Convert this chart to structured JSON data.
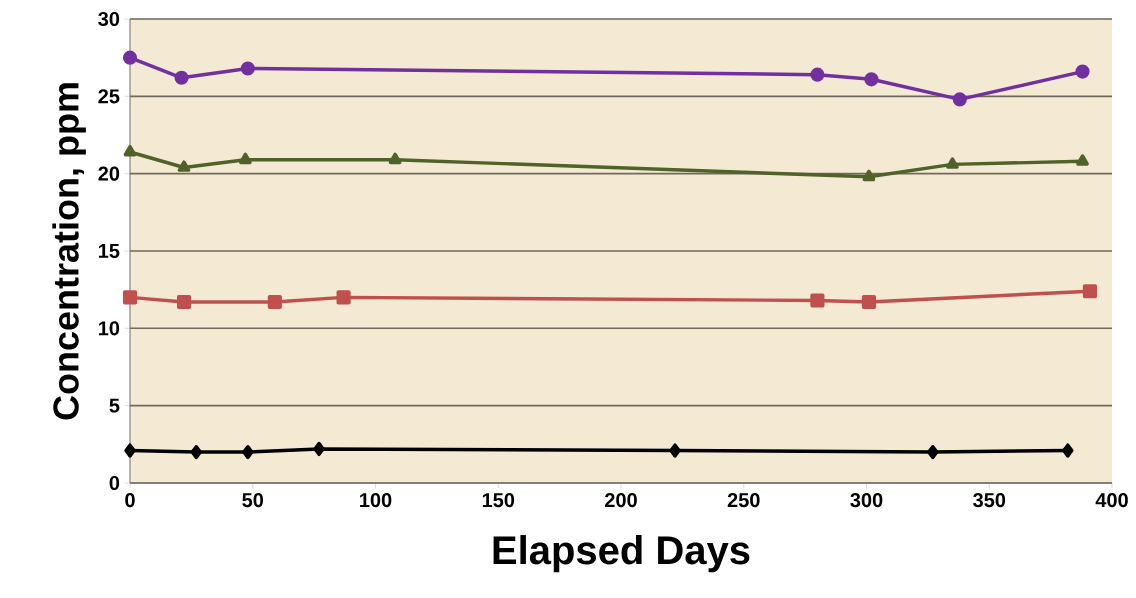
{
  "chart_data": {
    "type": "line",
    "xlabel": "Elapsed Days",
    "ylabel": "Concentration, ppm",
    "xlim": [
      0,
      400
    ],
    "xticks": [
      0,
      50,
      100,
      150,
      200,
      250,
      300,
      350,
      400
    ],
    "ylim": [
      0,
      30
    ],
    "yticks": [
      0,
      5,
      10,
      15,
      20,
      25,
      30
    ],
    "grid": "y",
    "line_style": "solid",
    "series": [
      {
        "color": "#7030a0",
        "marker": "circle",
        "x": [
          0,
          21,
          48,
          280,
          302,
          338,
          388
        ],
        "values": [
          27.5,
          26.2,
          26.8,
          26.4,
          26.1,
          24.8,
          26.6
        ]
      },
      {
        "color": "#4f6228",
        "marker": "triangle",
        "x": [
          0,
          22,
          47,
          108,
          301,
          335,
          388
        ],
        "values": [
          21.4,
          20.4,
          20.9,
          20.9,
          19.8,
          20.6,
          20.8
        ]
      },
      {
        "color": "#c0504d",
        "marker": "square",
        "x": [
          0,
          22,
          59,
          87,
          280,
          301,
          391
        ],
        "values": [
          12.0,
          11.7,
          11.7,
          12.0,
          11.8,
          11.7,
          12.4
        ]
      },
      {
        "color": "#000000",
        "marker": "diamond",
        "x": [
          0,
          27,
          48,
          77,
          222,
          327,
          382
        ],
        "values": [
          2.1,
          2.0,
          2.0,
          2.2,
          2.1,
          2.0,
          2.1
        ]
      }
    ]
  }
}
